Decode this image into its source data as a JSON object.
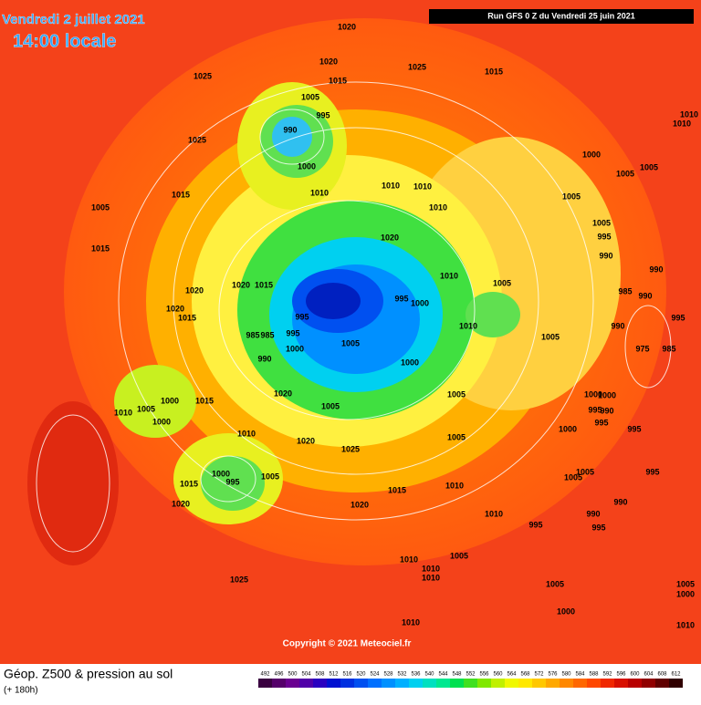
{
  "header": {
    "date": "Vendredi 2 juillet 2021",
    "time": "14:00 locale",
    "run": "Run GFS 0 Z du Vendredi 25 juin 2021"
  },
  "copyright": "Copyright © 2021 Meteociel.fr",
  "legend": {
    "title": "Géop. Z500 & pression au sol",
    "subtitle": "(+ 180h)",
    "scale": [
      492,
      496,
      500,
      504,
      508,
      512,
      516,
      520,
      524,
      528,
      532,
      536,
      540,
      544,
      548,
      552,
      556,
      560,
      564,
      568,
      572,
      576,
      580,
      584,
      588,
      592,
      596,
      600,
      604,
      608,
      612
    ],
    "colors": [
      "#3a0040",
      "#55006a",
      "#6a0090",
      "#5000a8",
      "#2a00c0",
      "#0010d0",
      "#0030e0",
      "#0050f0",
      "#0070ff",
      "#0090ff",
      "#00b0ff",
      "#00d0f0",
      "#00e0c0",
      "#00e890",
      "#00e050",
      "#40e020",
      "#80e800",
      "#c0f000",
      "#f0f800",
      "#ffe800",
      "#ffc800",
      "#ffa800",
      "#ff8800",
      "#ff6800",
      "#ff4800",
      "#f02800",
      "#d81000",
      "#b80000",
      "#900000",
      "#600000",
      "#300000"
    ]
  },
  "isobar_labels": [
    1020,
    1025,
    1020,
    1015,
    1025,
    1015,
    1005,
    995,
    990,
    1025,
    1000,
    1010,
    1010,
    1010,
    1015,
    1005,
    1010,
    1015,
    1020,
    1010,
    1020,
    1020,
    1015,
    1020,
    1015,
    995,
    1000,
    1005,
    995,
    985,
    985,
    995,
    1000,
    1010,
    990,
    1005,
    1000,
    1005,
    1000,
    1015,
    1020,
    1005,
    1005,
    1010,
    1005,
    1000,
    1010,
    1020,
    1025,
    1005,
    1000,
    995,
    1005,
    1015,
    1010,
    1015,
    1020,
    1020,
    1010,
    995,
    1010,
    1005,
    1010,
    1010,
    1025,
    1005,
    1000,
    1010,
    1000,
    1005,
    1005,
    1005,
    1010,
    1010,
    1005,
    995,
    990,
    990,
    985,
    990,
    995,
    990,
    975,
    985,
    1000,
    1000,
    995,
    990,
    995,
    1000,
    995,
    995,
    1005,
    1005,
    990,
    990,
    995,
    1005,
    1000,
    1010
  ]
}
